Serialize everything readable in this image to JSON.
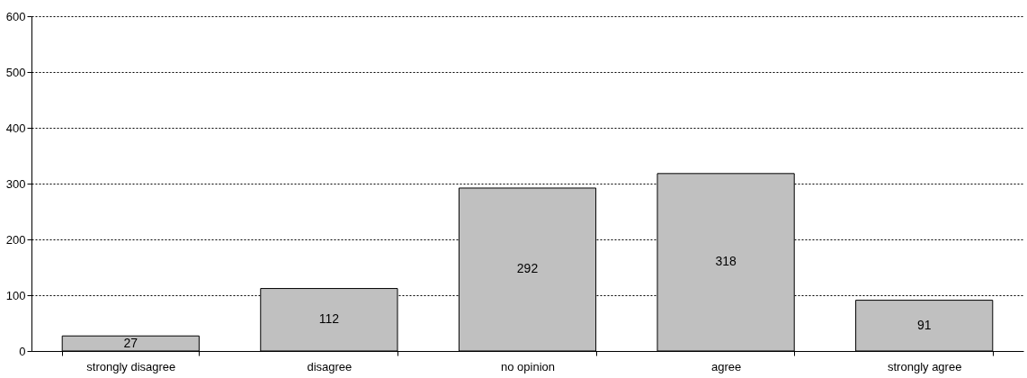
{
  "chart_data": {
    "type": "bar",
    "categories": [
      "strongly disagree",
      "disagree",
      "no opinion",
      "agree",
      "strongly agree"
    ],
    "values": [
      27,
      112,
      292,
      318,
      91
    ],
    "color": "#c0c0c0",
    "ylim": [
      0,
      600
    ],
    "yticks": [
      0,
      100,
      200,
      300,
      400,
      500,
      600
    ],
    "grid": "y",
    "data_labels": true
  }
}
